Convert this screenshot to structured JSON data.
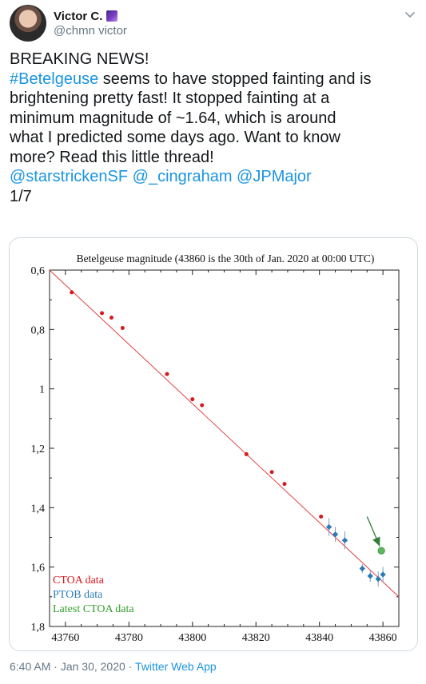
{
  "user": {
    "name": "Victor C.",
    "handle": "@chmn victor"
  },
  "tweet": {
    "line1": "BREAKING NEWS!",
    "hashtag": "#Betelgeuse",
    "line2_rest": " seems to have stopped fainting and is",
    "line3": "brightening pretty fast! It stopped fainting at a",
    "line4": "minimum magnitude of ~1.64, which is around",
    "line5": "what I predicted some days ago. Want to know",
    "line6": "more? Read this little thread!",
    "mentions": [
      "@starstrickenSF",
      "@_cingraham",
      "@JPMajor"
    ],
    "thread_count": "1/7"
  },
  "meta": {
    "time": "6:40 AM",
    "sep1": " · ",
    "date": "Jan 30, 2020",
    "sep2": " · ",
    "app": "Twitter Web App"
  },
  "icons": {
    "menu": "chevron-down-icon",
    "badge": "galaxy-emoji-icon"
  },
  "colors": {
    "ctoa": "#d7191c",
    "ptob": "#2c7bb6",
    "latest": "#33a02c",
    "fit_line": "#e04040",
    "link": "#1b95e0"
  },
  "chart_data": {
    "type": "scatter",
    "title": "Betelgeuse magnitude (43860 is the 30th of Jan. 2020 at 00:00 UTC)",
    "xlim": [
      43755,
      43865
    ],
    "ylim": [
      0.6,
      1.8
    ],
    "y_inverted": true,
    "x_ticks": [
      "43760",
      "43780",
      "43800",
      "43820",
      "43840",
      "43860"
    ],
    "y_ticks": [
      "0,6",
      "0,8",
      "1",
      "1,2",
      "1,4",
      "1,6",
      "1,8"
    ],
    "series": [
      {
        "name": "CTOA data",
        "color": "#d7191c",
        "x": [
          43762,
          43771.5,
          43774.5,
          43778,
          43792,
          43800,
          43803,
          43817,
          43825,
          43829,
          43840.5
        ],
        "y": [
          0.675,
          0.745,
          0.76,
          0.795,
          0.95,
          1.035,
          1.055,
          1.22,
          1.28,
          1.32,
          1.43
        ]
      },
      {
        "name": "PTOB data",
        "color": "#2c7bb6",
        "x": [
          43843,
          43845,
          43848,
          43853.5,
          43856,
          43858.5,
          43860
        ],
        "y": [
          1.465,
          1.49,
          1.51,
          1.605,
          1.63,
          1.64,
          1.625
        ],
        "errors": [
          0.03,
          0.025,
          0.03,
          0.015,
          0.02,
          0.025,
          0.025
        ]
      },
      {
        "name": "Latest CTOA data",
        "color": "#33a02c",
        "x": [
          43859.5
        ],
        "y": [
          1.545
        ]
      }
    ],
    "fit_line": {
      "x": [
        43755,
        43865
      ],
      "y": [
        0.6,
        1.7
      ]
    },
    "annotation_arrow": {
      "from": [
        43855,
        1.43
      ],
      "to": [
        43859,
        1.53
      ],
      "color": "#2e7d32"
    },
    "legend_placement": "bottom-left",
    "grid": false
  }
}
